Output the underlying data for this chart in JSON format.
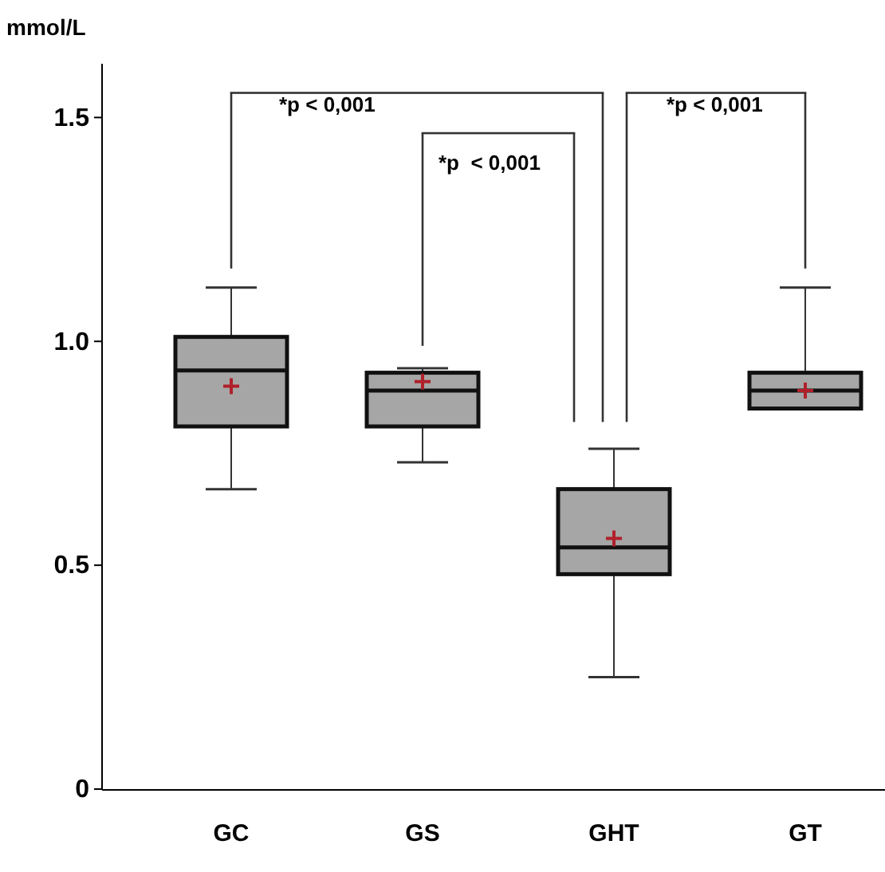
{
  "chart_data": {
    "type": "box",
    "ylabel": "mmol/L",
    "categories": [
      "GC",
      "GS",
      "GHT",
      "GT"
    ],
    "boxes": [
      {
        "low": 0.67,
        "q1": 0.81,
        "median": 0.935,
        "q3": 1.01,
        "high": 1.12,
        "mean": 0.9
      },
      {
        "low": 0.73,
        "q1": 0.81,
        "median": 0.89,
        "q3": 0.93,
        "high": 0.94,
        "mean": 0.91
      },
      {
        "low": 0.25,
        "q1": 0.48,
        "median": 0.54,
        "q3": 0.67,
        "high": 0.76,
        "mean": 0.56
      },
      {
        "low": 0.85,
        "q1": 0.85,
        "median": 0.89,
        "q3": 0.93,
        "high": 1.12,
        "mean": 0.89
      }
    ],
    "color": "#a6a6a6",
    "ylim": [
      0,
      1.62
    ],
    "yticks": [
      0,
      {
        "value": 0.5,
        "label": "0.5"
      },
      {
        "value": 1,
        "label": "1.0"
      },
      1.5
    ],
    "annotations": [
      "*p < 0,001",
      "*p  < 0,001",
      "*p < 0,001"
    ]
  }
}
